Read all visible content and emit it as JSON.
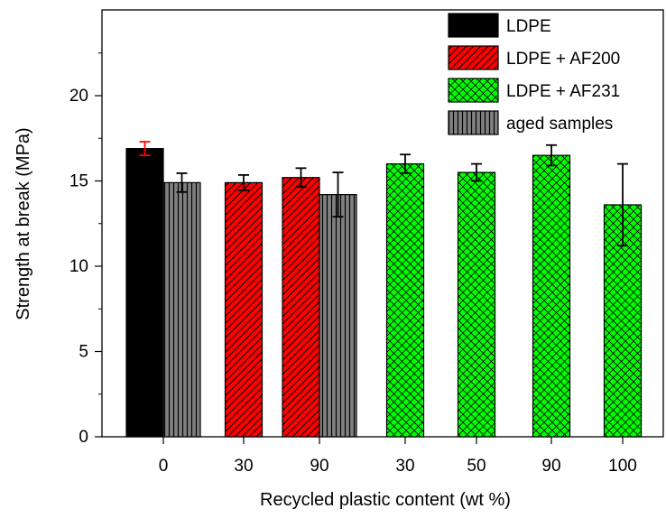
{
  "chart_data": {
    "type": "bar",
    "title": "",
    "xlabel": "Recycled plastic content (wt %)",
    "ylabel": "Strength at break (MPa)",
    "ylim": [
      0,
      25
    ],
    "yticks": [
      0,
      5,
      10,
      15,
      20
    ],
    "grid": false,
    "legend_position": "top-right",
    "categories": [
      "0",
      "30",
      "90",
      "30",
      "50",
      "90",
      "100"
    ],
    "series": [
      {
        "name": "LDPE",
        "color": "#000000",
        "pattern": "solid",
        "errorbar_color": "#ff0000",
        "points": [
          {
            "category_index": 0,
            "value": 16.9,
            "error": 0.4
          }
        ]
      },
      {
        "name": "LDPE + AF200",
        "color": "#ff0000",
        "pattern": "diagonal-hatch",
        "errorbar_color": "#000000",
        "points": [
          {
            "category_index": 1,
            "value": 14.9,
            "error": 0.45
          },
          {
            "category_index": 2,
            "value": 15.2,
            "error": 0.55
          }
        ]
      },
      {
        "name": "LDPE + AF231",
        "color": "#00ff00",
        "pattern": "crosshatch",
        "errorbar_color": "#000000",
        "points": [
          {
            "category_index": 3,
            "value": 16.0,
            "error": 0.55
          },
          {
            "category_index": 4,
            "value": 15.5,
            "error": 0.5
          },
          {
            "category_index": 5,
            "value": 16.5,
            "error": 0.6
          },
          {
            "category_index": 6,
            "value": 13.6,
            "error": 2.4
          }
        ]
      },
      {
        "name": "aged samples",
        "color": "#808080",
        "pattern": "vertical-lines",
        "errorbar_color": "#000000",
        "points": [
          {
            "category_index": 0,
            "value": 14.9,
            "error": 0.55
          },
          {
            "category_index": 2,
            "value": 14.2,
            "error": 1.3
          }
        ]
      }
    ]
  }
}
